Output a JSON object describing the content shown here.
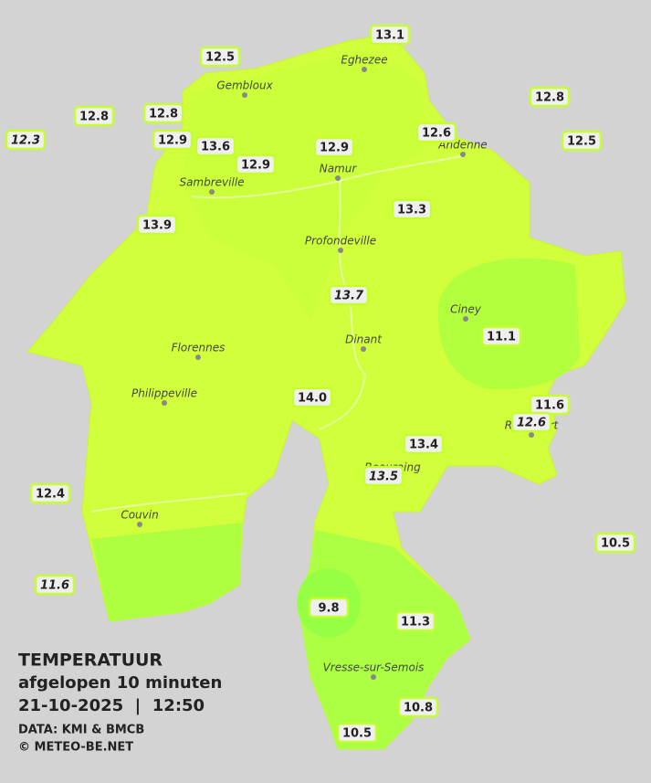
{
  "legend": {
    "title": "TEMPERATUUR",
    "subtitle": "afgelopen 10 minuten",
    "datetime": "21-10-2025  |  12:50",
    "source": "DATA: KMI & BMCB",
    "credit": "© METEO-BE.NET"
  },
  "towns": [
    "Eghezee",
    "Gembloux",
    "Andenne",
    "Namur",
    "Sambreville",
    "Profondeville",
    "Ciney",
    "Dinant",
    "Florennes",
    "Philippeville",
    "Rochefort",
    "Beauraing",
    "Couvin",
    "Vresse-sur-Semois"
  ],
  "stations": [
    "13.1",
    "12.5",
    "12.8",
    "12.8",
    "12.3",
    "12.9",
    "13.6",
    "12.9",
    "12.9",
    "12.6",
    "12.8",
    "12.5",
    "13.9",
    "13.3",
    "13.7",
    "11.1",
    "14.0",
    "11.6",
    "12.6",
    "13.4",
    "13.5",
    "12.4",
    "10.5",
    "11.6",
    "9.8",
    "11.3",
    "10.8",
    "10.5"
  ]
}
